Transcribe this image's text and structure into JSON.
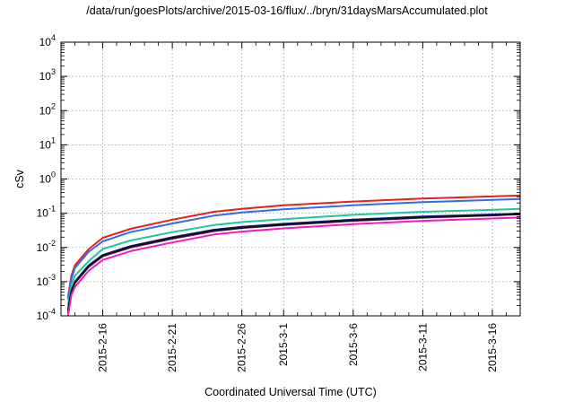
{
  "chart_data": {
    "type": "line",
    "title": "/data/run/goesPlots/archive/2015-03-16/flux/../bryn/31daysMarsAccumulated.plot",
    "xlabel": "Coordinated Universal Time (UTC)",
    "ylabel": "cSv",
    "yscale": "log",
    "ylim": [
      0.0001,
      10000
    ],
    "xlim": [
      "2015-02-13",
      "2015-03-18"
    ],
    "grid": true,
    "y_ticks": [
      {
        "base": "10",
        "exp": "-4"
      },
      {
        "base": "10",
        "exp": "-3"
      },
      {
        "base": "10",
        "exp": "-2"
      },
      {
        "base": "10",
        "exp": "-1"
      },
      {
        "base": "10",
        "exp": "0"
      },
      {
        "base": "10",
        "exp": "1"
      },
      {
        "base": "10",
        "exp": "2"
      },
      {
        "base": "10",
        "exp": "3"
      },
      {
        "base": "10",
        "exp": "4"
      }
    ],
    "x_ticks": [
      "2015-2-16",
      "2015-2-21",
      "2015-2-26",
      "2015-3-1",
      "2015-3-6",
      "2015-3-11",
      "2015-3-16"
    ],
    "x_minor_ticks": [
      "2015-2-14",
      "2015-2-15",
      "2015-2-17",
      "2015-2-18",
      "2015-2-19",
      "2015-2-20",
      "2015-2-22",
      "2015-2-23",
      "2015-2-24",
      "2015-2-25",
      "2015-2-27",
      "2015-2-28",
      "2015-3-2",
      "2015-3-3",
      "2015-3-4",
      "2015-3-5",
      "2015-3-7",
      "2015-3-8",
      "2015-3-9",
      "2015-3-10",
      "2015-3-12",
      "2015-3-13",
      "2015-3-14",
      "2015-3-15",
      "2015-3-17"
    ],
    "x": [
      "2015-02-13 12:00",
      "2015-02-13 18:00",
      "2015-02-14",
      "2015-02-15",
      "2015-02-16",
      "2015-02-18",
      "2015-02-21",
      "2015-02-24",
      "2015-02-26",
      "2015-03-01",
      "2015-03-06",
      "2015-03-11",
      "2015-03-16",
      "2015-03-18"
    ],
    "series": [
      {
        "color": "#e8201c",
        "values": [
          0.00035,
          0.0015,
          0.003,
          0.009,
          0.019,
          0.035,
          0.065,
          0.11,
          0.135,
          0.17,
          0.22,
          0.27,
          0.31,
          0.33
        ]
      },
      {
        "color": "#2e6ee6",
        "values": [
          0.0003,
          0.0012,
          0.0025,
          0.0075,
          0.015,
          0.028,
          0.05,
          0.085,
          0.105,
          0.13,
          0.17,
          0.21,
          0.245,
          0.26
        ]
      },
      {
        "color": "#1fc7a0",
        "values": [
          0.0002,
          0.0008,
          0.0015,
          0.004,
          0.009,
          0.016,
          0.028,
          0.045,
          0.055,
          0.067,
          0.09,
          0.11,
          0.125,
          0.135
        ]
      },
      {
        "color": "#7a1070",
        "values": [
          0.00012,
          0.0005,
          0.0009,
          0.0027,
          0.0055,
          0.01,
          0.018,
          0.03,
          0.037,
          0.045,
          0.06,
          0.074,
          0.086,
          0.093
        ]
      },
      {
        "color": "#2020a0",
        "values": [
          0.00015,
          0.00055,
          0.001,
          0.003,
          0.006,
          0.011,
          0.02,
          0.033,
          0.04,
          0.049,
          0.065,
          0.08,
          0.092,
          0.098
        ]
      },
      {
        "color": "#111111",
        "values": [
          0.00014,
          0.00052,
          0.00095,
          0.0029,
          0.0058,
          0.0105,
          0.019,
          0.032,
          0.038,
          0.047,
          0.062,
          0.077,
          0.089,
          0.095
        ]
      },
      {
        "color": "#ee1ec0",
        "values": [
          0.0001,
          0.0004,
          0.0007,
          0.0021,
          0.0043,
          0.0078,
          0.014,
          0.024,
          0.029,
          0.036,
          0.048,
          0.06,
          0.07,
          0.075
        ]
      }
    ]
  }
}
